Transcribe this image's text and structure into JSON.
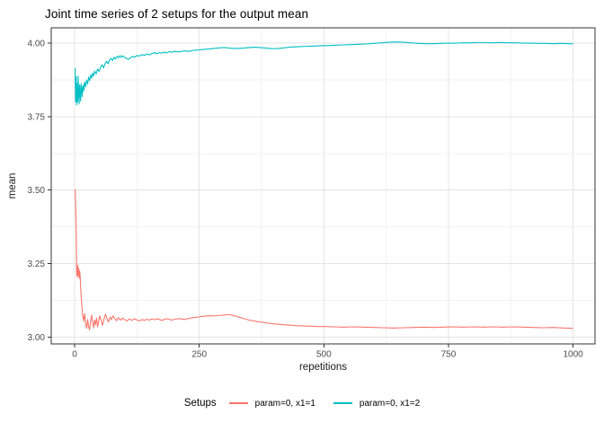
{
  "chart_data": {
    "type": "line",
    "title": "Joint time series of 2 setups for the output mean",
    "xlabel": "repetitions",
    "ylabel": "mean",
    "legend_title": "Setups",
    "legend_position": "bottom",
    "grid": true,
    "xlim": [
      -47,
      1044
    ],
    "ylim": [
      2.977,
      4.052
    ],
    "x_ticks": [
      {
        "label": "0",
        "value": 0
      },
      {
        "label": "250",
        "value": 250
      },
      {
        "label": "500",
        "value": 500
      },
      {
        "label": "750",
        "value": 750
      },
      {
        "label": "1000",
        "value": 1000
      }
    ],
    "y_ticks": [
      {
        "label": "3.00",
        "value": 3.0
      },
      {
        "label": "3.25",
        "value": 3.25
      },
      {
        "label": "3.50",
        "value": 3.5
      },
      {
        "label": "3.75",
        "value": 3.75
      },
      {
        "label": "4.00",
        "value": 4.0
      }
    ],
    "x_minor": [
      125,
      375,
      625,
      875
    ],
    "y_minor": [
      3.125,
      3.375,
      3.625,
      3.875
    ],
    "series": [
      {
        "name": "param=0, x1=1",
        "color": "#F8766D",
        "points": [
          [
            1,
            3.503
          ],
          [
            2,
            3.44
          ],
          [
            3,
            3.38
          ],
          [
            4,
            3.22
          ],
          [
            5,
            3.205
          ],
          [
            6,
            3.245
          ],
          [
            7,
            3.21
          ],
          [
            8,
            3.235
          ],
          [
            9,
            3.2
          ],
          [
            10,
            3.225
          ],
          [
            11,
            3.21
          ],
          [
            12,
            3.17
          ],
          [
            13,
            3.14
          ],
          [
            14,
            3.115
          ],
          [
            15,
            3.095
          ],
          [
            16,
            3.075
          ],
          [
            18,
            3.055
          ],
          [
            20,
            3.08
          ],
          [
            22,
            3.045
          ],
          [
            24,
            3.03
          ],
          [
            26,
            3.06
          ],
          [
            28,
            3.035
          ],
          [
            30,
            3.025
          ],
          [
            32,
            3.055
          ],
          [
            34,
            3.075
          ],
          [
            36,
            3.05
          ],
          [
            38,
            3.032
          ],
          [
            40,
            3.058
          ],
          [
            42,
            3.042
          ],
          [
            44,
            3.065
          ],
          [
            46,
            3.035
          ],
          [
            48,
            3.052
          ],
          [
            50,
            3.072
          ],
          [
            53,
            3.058
          ],
          [
            56,
            3.04
          ],
          [
            59,
            3.062
          ],
          [
            62,
            3.078
          ],
          [
            65,
            3.062
          ],
          [
            68,
            3.052
          ],
          [
            71,
            3.068
          ],
          [
            74,
            3.06
          ],
          [
            77,
            3.072
          ],
          [
            80,
            3.064
          ],
          [
            84,
            3.056
          ],
          [
            88,
            3.066
          ],
          [
            92,
            3.058
          ],
          [
            96,
            3.065
          ],
          [
            100,
            3.06
          ],
          [
            105,
            3.055
          ],
          [
            110,
            3.062
          ],
          [
            115,
            3.057
          ],
          [
            120,
            3.063
          ],
          [
            125,
            3.058
          ],
          [
            130,
            3.055
          ],
          [
            135,
            3.06
          ],
          [
            140,
            3.057
          ],
          [
            145,
            3.061
          ],
          [
            150,
            3.058
          ],
          [
            155,
            3.062
          ],
          [
            160,
            3.059
          ],
          [
            165,
            3.063
          ],
          [
            170,
            3.06
          ],
          [
            175,
            3.057
          ],
          [
            180,
            3.06
          ],
          [
            185,
            3.063
          ],
          [
            190,
            3.06
          ],
          [
            195,
            3.058
          ],
          [
            200,
            3.061
          ],
          [
            210,
            3.063
          ],
          [
            220,
            3.06
          ],
          [
            230,
            3.064
          ],
          [
            240,
            3.067
          ],
          [
            250,
            3.069
          ],
          [
            260,
            3.071
          ],
          [
            270,
            3.073
          ],
          [
            280,
            3.072
          ],
          [
            290,
            3.074
          ],
          [
            300,
            3.075
          ],
          [
            310,
            3.077
          ],
          [
            320,
            3.073
          ],
          [
            330,
            3.068
          ],
          [
            340,
            3.063
          ],
          [
            350,
            3.058
          ],
          [
            360,
            3.055
          ],
          [
            370,
            3.052
          ],
          [
            380,
            3.05
          ],
          [
            390,
            3.047
          ],
          [
            400,
            3.045
          ],
          [
            415,
            3.043
          ],
          [
            430,
            3.041
          ],
          [
            445,
            3.039
          ],
          [
            460,
            3.038
          ],
          [
            475,
            3.037
          ],
          [
            490,
            3.036
          ],
          [
            505,
            3.036
          ],
          [
            520,
            3.035
          ],
          [
            540,
            3.034
          ],
          [
            560,
            3.035
          ],
          [
            580,
            3.034
          ],
          [
            600,
            3.033
          ],
          [
            620,
            3.032
          ],
          [
            640,
            3.031
          ],
          [
            660,
            3.032
          ],
          [
            680,
            3.033
          ],
          [
            700,
            3.034
          ],
          [
            720,
            3.033
          ],
          [
            740,
            3.034
          ],
          [
            760,
            3.035
          ],
          [
            780,
            3.034
          ],
          [
            800,
            3.035
          ],
          [
            820,
            3.034
          ],
          [
            840,
            3.035
          ],
          [
            860,
            3.034
          ],
          [
            880,
            3.035
          ],
          [
            900,
            3.034
          ],
          [
            920,
            3.033
          ],
          [
            940,
            3.032
          ],
          [
            960,
            3.033
          ],
          [
            980,
            3.031
          ],
          [
            1000,
            3.03
          ]
        ]
      },
      {
        "name": "param=0, x1=2",
        "color": "#00BFC4",
        "points": [
          [
            1,
            3.915
          ],
          [
            2,
            3.8
          ],
          [
            3,
            3.885
          ],
          [
            4,
            3.79
          ],
          [
            5,
            3.862
          ],
          [
            6,
            3.8
          ],
          [
            7,
            3.888
          ],
          [
            8,
            3.825
          ],
          [
            9,
            3.793
          ],
          [
            10,
            3.858
          ],
          [
            11,
            3.832
          ],
          [
            12,
            3.803
          ],
          [
            13,
            3.862
          ],
          [
            14,
            3.843
          ],
          [
            15,
            3.818
          ],
          [
            16,
            3.852
          ],
          [
            17,
            3.834
          ],
          [
            18,
            3.858
          ],
          [
            19,
            3.842
          ],
          [
            20,
            3.868
          ],
          [
            22,
            3.852
          ],
          [
            24,
            3.874
          ],
          [
            26,
            3.861
          ],
          [
            28,
            3.884
          ],
          [
            30,
            3.872
          ],
          [
            32,
            3.892
          ],
          [
            34,
            3.881
          ],
          [
            36,
            3.898
          ],
          [
            38,
            3.888
          ],
          [
            40,
            3.905
          ],
          [
            43,
            3.895
          ],
          [
            46,
            3.912
          ],
          [
            49,
            3.904
          ],
          [
            52,
            3.918
          ],
          [
            55,
            3.926
          ],
          [
            58,
            3.916
          ],
          [
            61,
            3.93
          ],
          [
            64,
            3.938
          ],
          [
            67,
            3.93
          ],
          [
            70,
            3.942
          ],
          [
            73,
            3.948
          ],
          [
            76,
            3.941
          ],
          [
            79,
            3.952
          ],
          [
            82,
            3.946
          ],
          [
            85,
            3.955
          ],
          [
            88,
            3.95
          ],
          [
            91,
            3.958
          ],
          [
            94,
            3.951
          ],
          [
            97,
            3.957
          ],
          [
            100,
            3.952
          ],
          [
            104,
            3.948
          ],
          [
            108,
            3.945
          ],
          [
            112,
            3.95
          ],
          [
            116,
            3.955
          ],
          [
            120,
            3.952
          ],
          [
            125,
            3.958
          ],
          [
            130,
            3.956
          ],
          [
            135,
            3.961
          ],
          [
            140,
            3.958
          ],
          [
            145,
            3.963
          ],
          [
            150,
            3.96
          ],
          [
            155,
            3.965
          ],
          [
            160,
            3.967
          ],
          [
            165,
            3.964
          ],
          [
            170,
            3.968
          ],
          [
            175,
            3.966
          ],
          [
            180,
            3.969
          ],
          [
            185,
            3.967
          ],
          [
            190,
            3.971
          ],
          [
            195,
            3.969
          ],
          [
            200,
            3.972
          ],
          [
            210,
            3.97
          ],
          [
            220,
            3.974
          ],
          [
            230,
            3.972
          ],
          [
            240,
            3.976
          ],
          [
            250,
            3.977
          ],
          [
            260,
            3.979
          ],
          [
            270,
            3.98
          ],
          [
            280,
            3.982
          ],
          [
            290,
            3.984
          ],
          [
            300,
            3.985
          ],
          [
            310,
            3.983
          ],
          [
            320,
            3.982
          ],
          [
            330,
            3.982
          ],
          [
            340,
            3.983
          ],
          [
            350,
            3.985
          ],
          [
            360,
            3.986
          ],
          [
            370,
            3.985
          ],
          [
            380,
            3.984
          ],
          [
            390,
            3.982
          ],
          [
            400,
            3.981
          ],
          [
            410,
            3.982
          ],
          [
            420,
            3.984
          ],
          [
            430,
            3.986
          ],
          [
            440,
            3.987
          ],
          [
            450,
            3.988
          ],
          [
            465,
            3.989
          ],
          [
            480,
            3.99
          ],
          [
            495,
            3.991
          ],
          [
            510,
            3.992
          ],
          [
            525,
            3.993
          ],
          [
            540,
            3.994
          ],
          [
            555,
            3.995
          ],
          [
            570,
            3.996
          ],
          [
            585,
            3.997
          ],
          [
            600,
            3.999
          ],
          [
            615,
            4.001
          ],
          [
            630,
            4.003
          ],
          [
            645,
            4.004
          ],
          [
            660,
            4.003
          ],
          [
            675,
            4.001
          ],
          [
            690,
            3.999
          ],
          [
            705,
            3.998
          ],
          [
            720,
            3.998
          ],
          [
            735,
            3.999
          ],
          [
            750,
            4.0
          ],
          [
            765,
            4.0
          ],
          [
            780,
            4.001
          ],
          [
            795,
            4.001
          ],
          [
            810,
            4.002
          ],
          [
            825,
            4.002
          ],
          [
            840,
            4.001
          ],
          [
            855,
            4.002
          ],
          [
            870,
            4.001
          ],
          [
            885,
            4.001
          ],
          [
            900,
            4.0
          ],
          [
            915,
            4.0
          ],
          [
            930,
            3.999
          ],
          [
            945,
            3.999
          ],
          [
            960,
            3.998
          ],
          [
            975,
            3.999
          ],
          [
            990,
            3.998
          ],
          [
            1000,
            3.998
          ]
        ]
      }
    ],
    "theme": {
      "background": "#ffffff",
      "panel_background": "#ffffff",
      "panel_border": "#333333",
      "grid_major": "#e4e4e4",
      "grid_minor": "#f2f2f2",
      "tick_color": "#333333",
      "tick_label_color": "#4d4d4d",
      "text_color": "#1a1a1a"
    }
  }
}
